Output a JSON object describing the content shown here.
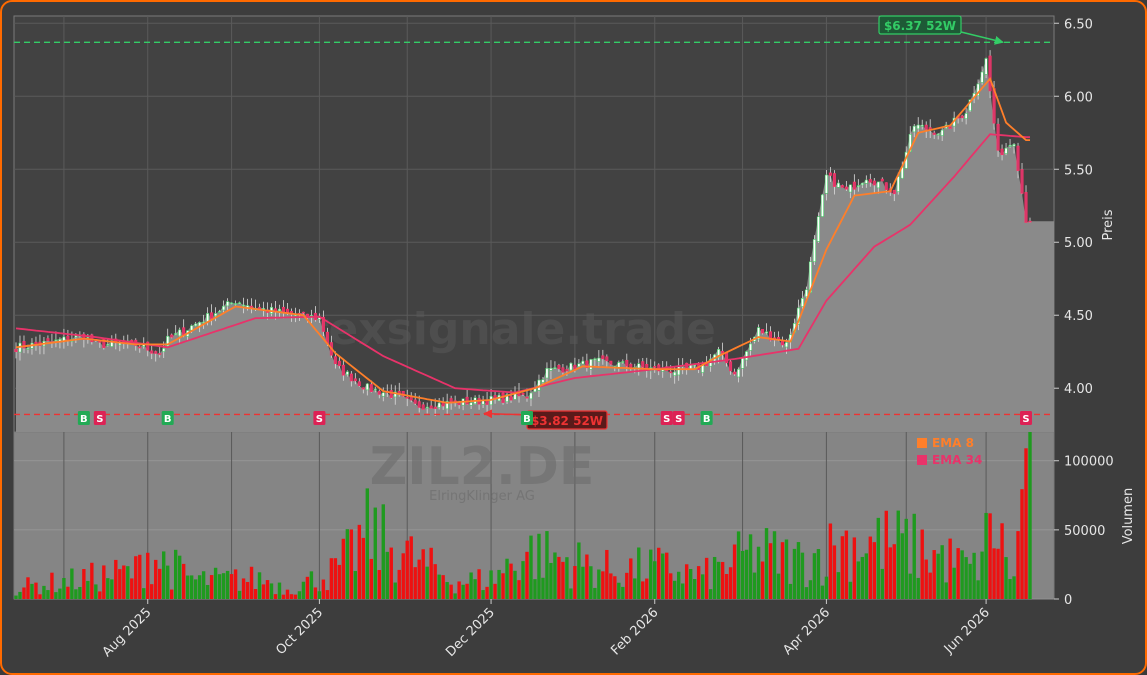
{
  "chart_data": {
    "type": "candlestick",
    "symbol": "ZIL2.DE",
    "company": "ElringKlinger AG",
    "watermark": "Forexsignale.trade",
    "price_axis": {
      "label": "Preis",
      "range": [
        3.7,
        6.55
      ],
      "ticks": [
        "6.50",
        "6.00",
        "5.50",
        "5.00",
        "4.50",
        "4.00"
      ],
      "tick_values": [
        6.5,
        6.0,
        5.5,
        5.0,
        4.5,
        4.0
      ],
      "position": "right"
    },
    "volume_axis": {
      "label": "Volumen",
      "range": [
        0,
        115000
      ],
      "ticks": [
        "100000",
        "50000",
        "0"
      ],
      "tick_values": [
        100000,
        50000,
        0
      ],
      "position": "right"
    },
    "x_axis": {
      "ticks": [
        "Aug 2025",
        "Oct 2025",
        "Dec 2025",
        "Feb 2026",
        "Apr 2026",
        "Jun 2026"
      ],
      "tick_idx": [
        33,
        76,
        119,
        160,
        203,
        243
      ]
    },
    "grid": true,
    "legend": {
      "placement": "top-right of volume panel",
      "items": [
        {
          "name": "EMA 8",
          "color": "#ff7f2a"
        },
        {
          "name": "EMA 34",
          "color": "#e8336a"
        }
      ]
    },
    "annotations": {
      "high_52w": {
        "label": "$6.37 52W",
        "value": 6.37,
        "color": "#33cc66"
      },
      "low_52w": {
        "label": "$3.82 52W",
        "value": 3.82,
        "color": "#ee3333"
      }
    },
    "signals": [
      {
        "label": "B",
        "idx": 17,
        "type": "buy"
      },
      {
        "label": "S",
        "idx": 21,
        "type": "sell"
      },
      {
        "label": "B",
        "idx": 38,
        "type": "buy"
      },
      {
        "label": "S",
        "idx": 76,
        "type": "sell"
      },
      {
        "label": "B",
        "idx": 128,
        "type": "buy"
      },
      {
        "label": "S",
        "idx": 163,
        "type": "sell"
      },
      {
        "label": "S",
        "idx": 166,
        "type": "sell"
      },
      {
        "label": "B",
        "idx": 173,
        "type": "buy"
      },
      {
        "label": "S",
        "idx": 253,
        "type": "sell"
      }
    ],
    "close_keypoints": [
      [
        0,
        4.28
      ],
      [
        8,
        4.31
      ],
      [
        17,
        4.36
      ],
      [
        20,
        4.3
      ],
      [
        30,
        4.3
      ],
      [
        36,
        4.24
      ],
      [
        38,
        4.33
      ],
      [
        45,
        4.44
      ],
      [
        55,
        4.6
      ],
      [
        62,
        4.54
      ],
      [
        70,
        4.5
      ],
      [
        76,
        4.48
      ],
      [
        80,
        4.15
      ],
      [
        88,
        4.0
      ],
      [
        95,
        3.95
      ],
      [
        100,
        3.88
      ],
      [
        110,
        3.9
      ],
      [
        119,
        3.92
      ],
      [
        128,
        3.95
      ],
      [
        133,
        4.12
      ],
      [
        140,
        4.15
      ],
      [
        145,
        4.18
      ],
      [
        152,
        4.16
      ],
      [
        160,
        4.13
      ],
      [
        166,
        4.12
      ],
      [
        172,
        4.15
      ],
      [
        176,
        4.25
      ],
      [
        180,
        4.1
      ],
      [
        186,
        4.4
      ],
      [
        193,
        4.3
      ],
      [
        198,
        4.7
      ],
      [
        203,
        5.45
      ],
      [
        208,
        5.35
      ],
      [
        213,
        5.45
      ],
      [
        220,
        5.35
      ],
      [
        225,
        5.8
      ],
      [
        232,
        5.75
      ],
      [
        238,
        5.9
      ],
      [
        243,
        6.25
      ],
      [
        246,
        5.6
      ],
      [
        250,
        5.7
      ],
      [
        253,
        5.16
      ]
    ],
    "volume_keypoints": [
      [
        0,
        9000
      ],
      [
        12,
        14000
      ],
      [
        30,
        22000
      ],
      [
        33,
        36000
      ],
      [
        45,
        15000
      ],
      [
        62,
        16000
      ],
      [
        68,
        8000
      ],
      [
        80,
        22000
      ],
      [
        88,
        52000
      ],
      [
        110,
        14000
      ],
      [
        119,
        16000
      ],
      [
        128,
        38000
      ],
      [
        150,
        22000
      ],
      [
        160,
        26000
      ],
      [
        172,
        18000
      ],
      [
        185,
        38000
      ],
      [
        197,
        30000
      ],
      [
        203,
        38000
      ],
      [
        208,
        46000
      ],
      [
        222,
        44000
      ],
      [
        228,
        38000
      ],
      [
        240,
        24000
      ],
      [
        245,
        60000
      ],
      [
        250,
        15000
      ],
      [
        253,
        109000
      ]
    ],
    "ema_8_keypoints": [
      [
        0,
        4.28
      ],
      [
        17,
        4.34
      ],
      [
        30,
        4.3
      ],
      [
        38,
        4.3
      ],
      [
        55,
        4.56
      ],
      [
        72,
        4.5
      ],
      [
        80,
        4.24
      ],
      [
        92,
        3.98
      ],
      [
        108,
        3.9
      ],
      [
        119,
        3.92
      ],
      [
        130,
        4.0
      ],
      [
        142,
        4.15
      ],
      [
        160,
        4.13
      ],
      [
        170,
        4.13
      ],
      [
        176,
        4.22
      ],
      [
        186,
        4.35
      ],
      [
        194,
        4.32
      ],
      [
        203,
        4.95
      ],
      [
        210,
        5.32
      ],
      [
        219,
        5.35
      ],
      [
        226,
        5.75
      ],
      [
        234,
        5.8
      ],
      [
        244,
        6.12
      ],
      [
        248,
        5.82
      ],
      [
        253,
        5.7
      ]
    ],
    "ema_34_keypoints": [
      [
        0,
        4.41
      ],
      [
        20,
        4.35
      ],
      [
        38,
        4.28
      ],
      [
        60,
        4.48
      ],
      [
        76,
        4.49
      ],
      [
        92,
        4.22
      ],
      [
        110,
        4.0
      ],
      [
        125,
        3.97
      ],
      [
        140,
        4.07
      ],
      [
        160,
        4.13
      ],
      [
        180,
        4.2
      ],
      [
        196,
        4.27
      ],
      [
        203,
        4.6
      ],
      [
        215,
        4.97
      ],
      [
        224,
        5.12
      ],
      [
        235,
        5.45
      ],
      [
        244,
        5.74
      ],
      [
        253,
        5.72
      ]
    ],
    "n_bars": 255
  }
}
